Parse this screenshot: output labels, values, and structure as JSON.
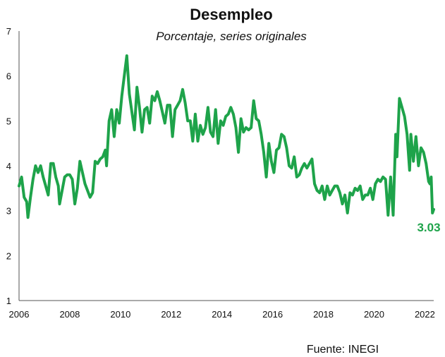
{
  "chart_data": {
    "type": "line",
    "title": "Desempleo",
    "subtitle": "Porcentaje, series originales",
    "source": "Fuente: INEGI",
    "line_color": "#1ea34a",
    "xlim": [
      2006,
      2022.35
    ],
    "ylim": [
      1,
      7
    ],
    "x_ticks": [
      2006,
      2008,
      2010,
      2012,
      2014,
      2016,
      2018,
      2020,
      2022
    ],
    "y_ticks": [
      1,
      2,
      3,
      4,
      5,
      6,
      7
    ],
    "grid": false,
    "last_value_label": "3.03",
    "series": [
      {
        "values": [
          [
            2006.0,
            3.55
          ],
          [
            2006.1,
            3.75
          ],
          [
            2006.2,
            3.3
          ],
          [
            2006.3,
            3.2
          ],
          [
            2006.35,
            2.85
          ],
          [
            2006.45,
            3.3
          ],
          [
            2006.55,
            3.7
          ],
          [
            2006.65,
            4.0
          ],
          [
            2006.75,
            3.85
          ],
          [
            2006.85,
            4.0
          ],
          [
            2006.95,
            3.75
          ],
          [
            2007.05,
            3.55
          ],
          [
            2007.15,
            3.35
          ],
          [
            2007.25,
            4.05
          ],
          [
            2007.35,
            4.05
          ],
          [
            2007.45,
            3.75
          ],
          [
            2007.55,
            3.55
          ],
          [
            2007.6,
            3.15
          ],
          [
            2007.7,
            3.45
          ],
          [
            2007.8,
            3.75
          ],
          [
            2007.9,
            3.8
          ],
          [
            2008.0,
            3.8
          ],
          [
            2008.1,
            3.7
          ],
          [
            2008.2,
            3.15
          ],
          [
            2008.3,
            3.5
          ],
          [
            2008.4,
            4.1
          ],
          [
            2008.5,
            3.85
          ],
          [
            2008.6,
            3.6
          ],
          [
            2008.7,
            3.45
          ],
          [
            2008.8,
            3.3
          ],
          [
            2008.9,
            3.4
          ],
          [
            2009.0,
            4.1
          ],
          [
            2009.1,
            4.05
          ],
          [
            2009.2,
            4.15
          ],
          [
            2009.3,
            4.2
          ],
          [
            2009.4,
            4.35
          ],
          [
            2009.45,
            4.0
          ],
          [
            2009.55,
            5.0
          ],
          [
            2009.65,
            5.25
          ],
          [
            2009.75,
            4.65
          ],
          [
            2009.85,
            5.25
          ],
          [
            2009.95,
            4.95
          ],
          [
            2010.05,
            5.55
          ],
          [
            2010.15,
            6.0
          ],
          [
            2010.25,
            6.45
          ],
          [
            2010.35,
            5.6
          ],
          [
            2010.45,
            5.2
          ],
          [
            2010.55,
            4.8
          ],
          [
            2010.65,
            5.75
          ],
          [
            2010.75,
            5.3
          ],
          [
            2010.85,
            4.75
          ],
          [
            2010.95,
            5.25
          ],
          [
            2011.05,
            5.3
          ],
          [
            2011.15,
            4.95
          ],
          [
            2011.25,
            5.55
          ],
          [
            2011.35,
            5.45
          ],
          [
            2011.45,
            5.65
          ],
          [
            2011.55,
            5.45
          ],
          [
            2011.65,
            5.2
          ],
          [
            2011.75,
            4.95
          ],
          [
            2011.85,
            5.35
          ],
          [
            2011.95,
            5.35
          ],
          [
            2012.05,
            4.65
          ],
          [
            2012.15,
            5.25
          ],
          [
            2012.25,
            5.35
          ],
          [
            2012.35,
            5.45
          ],
          [
            2012.45,
            5.7
          ],
          [
            2012.55,
            5.4
          ],
          [
            2012.65,
            5.0
          ],
          [
            2012.75,
            5.0
          ],
          [
            2012.85,
            4.55
          ],
          [
            2012.95,
            5.15
          ],
          [
            2013.05,
            4.55
          ],
          [
            2013.15,
            4.9
          ],
          [
            2013.25,
            4.7
          ],
          [
            2013.35,
            4.85
          ],
          [
            2013.45,
            5.3
          ],
          [
            2013.55,
            4.75
          ],
          [
            2013.65,
            4.65
          ],
          [
            2013.75,
            5.25
          ],
          [
            2013.85,
            4.5
          ],
          [
            2013.95,
            5.0
          ],
          [
            2014.05,
            4.9
          ],
          [
            2014.15,
            5.1
          ],
          [
            2014.25,
            5.15
          ],
          [
            2014.35,
            5.3
          ],
          [
            2014.45,
            5.15
          ],
          [
            2014.55,
            4.85
          ],
          [
            2014.65,
            4.3
          ],
          [
            2014.75,
            5.05
          ],
          [
            2014.85,
            4.75
          ],
          [
            2014.95,
            4.85
          ],
          [
            2015.05,
            4.8
          ],
          [
            2015.15,
            4.85
          ],
          [
            2015.25,
            5.45
          ],
          [
            2015.35,
            5.05
          ],
          [
            2015.45,
            5.0
          ],
          [
            2015.55,
            4.7
          ],
          [
            2015.65,
            4.3
          ],
          [
            2015.75,
            3.75
          ],
          [
            2015.85,
            4.5
          ],
          [
            2015.95,
            4.1
          ],
          [
            2016.05,
            3.85
          ],
          [
            2016.15,
            4.35
          ],
          [
            2016.25,
            4.4
          ],
          [
            2016.35,
            4.7
          ],
          [
            2016.45,
            4.65
          ],
          [
            2016.55,
            4.4
          ],
          [
            2016.65,
            4.0
          ],
          [
            2016.75,
            3.95
          ],
          [
            2016.85,
            4.2
          ],
          [
            2016.95,
            3.75
          ],
          [
            2017.05,
            3.8
          ],
          [
            2017.15,
            3.95
          ],
          [
            2017.25,
            4.05
          ],
          [
            2017.35,
            3.95
          ],
          [
            2017.45,
            4.05
          ],
          [
            2017.55,
            4.15
          ],
          [
            2017.65,
            3.6
          ],
          [
            2017.75,
            3.45
          ],
          [
            2017.85,
            3.4
          ],
          [
            2017.95,
            3.55
          ],
          [
            2018.05,
            3.25
          ],
          [
            2018.15,
            3.55
          ],
          [
            2018.25,
            3.35
          ],
          [
            2018.35,
            3.45
          ],
          [
            2018.45,
            3.55
          ],
          [
            2018.55,
            3.55
          ],
          [
            2018.65,
            3.4
          ],
          [
            2018.75,
            3.15
          ],
          [
            2018.85,
            3.35
          ],
          [
            2018.95,
            2.95
          ],
          [
            2019.05,
            3.4
          ],
          [
            2019.15,
            3.35
          ],
          [
            2019.25,
            3.5
          ],
          [
            2019.35,
            3.45
          ],
          [
            2019.45,
            3.55
          ],
          [
            2019.55,
            3.25
          ],
          [
            2019.65,
            3.35
          ],
          [
            2019.75,
            3.35
          ],
          [
            2019.85,
            3.5
          ],
          [
            2019.95,
            3.25
          ],
          [
            2020.05,
            3.6
          ],
          [
            2020.15,
            3.7
          ],
          [
            2020.25,
            3.65
          ],
          [
            2020.35,
            3.75
          ],
          [
            2020.45,
            3.7
          ],
          [
            2020.55,
            2.9
          ],
          [
            2020.65,
            3.75
          ],
          [
            2020.75,
            2.9
          ],
          [
            2020.85,
            4.7
          ],
          [
            2020.9,
            4.2
          ],
          [
            2021.0,
            5.5
          ],
          [
            2021.1,
            5.3
          ],
          [
            2021.2,
            5.1
          ],
          [
            2021.3,
            4.7
          ],
          [
            2021.4,
            3.9
          ],
          [
            2021.45,
            4.7
          ],
          [
            2021.55,
            4.1
          ],
          [
            2021.65,
            4.65
          ],
          [
            2021.75,
            4.0
          ],
          [
            2021.85,
            4.4
          ],
          [
            2021.95,
            4.3
          ],
          [
            2022.05,
            4.05
          ],
          [
            2022.15,
            3.65
          ],
          [
            2022.2,
            3.6
          ],
          [
            2022.25,
            3.75
          ],
          [
            2022.3,
            2.95
          ],
          [
            2022.35,
            3.03
          ]
        ]
      }
    ]
  }
}
